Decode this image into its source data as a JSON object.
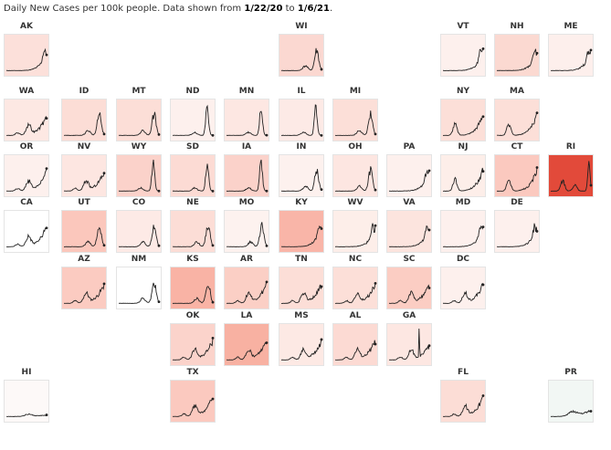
{
  "title": {
    "prefix": "Daily New Cases per 100k people. Data shown from ",
    "start": "1/22/20",
    "mid": " to ",
    "end": "1/6/21",
    "suffix": "."
  },
  "chart_data": {
    "type": "line",
    "description_metric": "Daily New Cases per 100k people",
    "x_range": [
      "1/22/20",
      "1/6/21"
    ],
    "layout": "tile grid map of US states",
    "tiles": [
      {
        "state": "AK",
        "row": 0,
        "col": 0,
        "fill": "#fce0da",
        "shape": "late"
      },
      {
        "state": "WI",
        "row": 0,
        "col": 5,
        "fill": "#fbd8d1",
        "shape": "fall"
      },
      {
        "state": "VT",
        "row": 0,
        "col": 8,
        "fill": "#fdf0ed",
        "shape": "late"
      },
      {
        "state": "NH",
        "row": 0,
        "col": 9,
        "fill": "#fbd9d1",
        "shape": "late"
      },
      {
        "state": "ME",
        "row": 0,
        "col": 10,
        "fill": "#fdefec",
        "shape": "late"
      },
      {
        "state": "WA",
        "row": 1,
        "col": 0,
        "fill": "#fde8e3",
        "shape": "wave3"
      },
      {
        "state": "ID",
        "row": 1,
        "col": 1,
        "fill": "#fcddd6",
        "shape": "fall"
      },
      {
        "state": "MT",
        "row": 1,
        "col": 2,
        "fill": "#fcded7",
        "shape": "fall"
      },
      {
        "state": "ND",
        "row": 1,
        "col": 3,
        "fill": "#fdf0ed",
        "shape": "spike"
      },
      {
        "state": "MN",
        "row": 1,
        "col": 4,
        "fill": "#fde7e2",
        "shape": "spike"
      },
      {
        "state": "IL",
        "row": 1,
        "col": 5,
        "fill": "#fdeae6",
        "shape": "spike"
      },
      {
        "state": "MI",
        "row": 1,
        "col": 6,
        "fill": "#fcdfd8",
        "shape": "fall"
      },
      {
        "state": "NY",
        "row": 1,
        "col": 8,
        "fill": "#fcdfd8",
        "shape": "early"
      },
      {
        "state": "MA",
        "row": 1,
        "col": 9,
        "fill": "#fcdfd8",
        "shape": "early"
      },
      {
        "state": "OR",
        "row": 2,
        "col": 0,
        "fill": "#fdf0ed",
        "shape": "wave3"
      },
      {
        "state": "NV",
        "row": 2,
        "col": 1,
        "fill": "#fde6e1",
        "shape": "wave3"
      },
      {
        "state": "WY",
        "row": 2,
        "col": 2,
        "fill": "#fbd2ca",
        "shape": "spike"
      },
      {
        "state": "SD",
        "row": 2,
        "col": 3,
        "fill": "#fcdbd4",
        "shape": "spike"
      },
      {
        "state": "IA",
        "row": 2,
        "col": 4,
        "fill": "#fbd2ca",
        "shape": "spike"
      },
      {
        "state": "IN",
        "row": 2,
        "col": 5,
        "fill": "#fdf1ee",
        "shape": "fall"
      },
      {
        "state": "OH",
        "row": 2,
        "col": 6,
        "fill": "#fde6e1",
        "shape": "fall"
      },
      {
        "state": "PA",
        "row": 2,
        "col": 7,
        "fill": "#fdf0ed",
        "shape": "late"
      },
      {
        "state": "NJ",
        "row": 2,
        "col": 8,
        "fill": "#fdeee9",
        "shape": "early"
      },
      {
        "state": "CT",
        "row": 2,
        "col": 9,
        "fill": "#fbc9bf",
        "shape": "early"
      },
      {
        "state": "RI",
        "row": 2,
        "col": 10,
        "fill": "#e24a3a",
        "shape": "ri"
      },
      {
        "state": "CA",
        "row": 3,
        "col": 0,
        "fill": "#ffffff",
        "shape": "wave3"
      },
      {
        "state": "UT",
        "row": 3,
        "col": 1,
        "fill": "#fbc7bc",
        "shape": "fall"
      },
      {
        "state": "CO",
        "row": 3,
        "col": 2,
        "fill": "#fdeae6",
        "shape": "fall"
      },
      {
        "state": "NE",
        "row": 3,
        "col": 3,
        "fill": "#fcddd6",
        "shape": "fall"
      },
      {
        "state": "MO",
        "row": 3,
        "col": 4,
        "fill": "#fdf2ef",
        "shape": "fall"
      },
      {
        "state": "KY",
        "row": 3,
        "col": 5,
        "fill": "#f9b5a8",
        "shape": "late"
      },
      {
        "state": "WV",
        "row": 3,
        "col": 6,
        "fill": "#fdeee9",
        "shape": "late"
      },
      {
        "state": "VA",
        "row": 3,
        "col": 7,
        "fill": "#fce4de",
        "shape": "late"
      },
      {
        "state": "MD",
        "row": 3,
        "col": 8,
        "fill": "#fdf0ed",
        "shape": "late"
      },
      {
        "state": "DE",
        "row": 3,
        "col": 9,
        "fill": "#fdf0ed",
        "shape": "late"
      },
      {
        "state": "AZ",
        "row": 4,
        "col": 1,
        "fill": "#fbcbc1",
        "shape": "wave3"
      },
      {
        "state": "NM",
        "row": 4,
        "col": 2,
        "fill": "#ffffff",
        "shape": "fall"
      },
      {
        "state": "KS",
        "row": 4,
        "col": 3,
        "fill": "#f9b3a5",
        "shape": "fall"
      },
      {
        "state": "AR",
        "row": 4,
        "col": 4,
        "fill": "#fbcfc5",
        "shape": "wave3"
      },
      {
        "state": "TN",
        "row": 4,
        "col": 5,
        "fill": "#fcded7",
        "shape": "wave3"
      },
      {
        "state": "NC",
        "row": 4,
        "col": 6,
        "fill": "#fcdfd8",
        "shape": "wave3"
      },
      {
        "state": "SC",
        "row": 4,
        "col": 7,
        "fill": "#fbcdc3",
        "shape": "wave3"
      },
      {
        "state": "DC",
        "row": 4,
        "col": 8,
        "fill": "#fdf0ed",
        "shape": "wave3"
      },
      {
        "state": "OK",
        "row": 5,
        "col": 3,
        "fill": "#fbd3cb",
        "shape": "wave3"
      },
      {
        "state": "LA",
        "row": 5,
        "col": 4,
        "fill": "#f8b1a2",
        "shape": "wave3"
      },
      {
        "state": "MS",
        "row": 5,
        "col": 5,
        "fill": "#fde9e4",
        "shape": "wave3"
      },
      {
        "state": "AL",
        "row": 5,
        "col": 6,
        "fill": "#fcdad3",
        "shape": "wave3"
      },
      {
        "state": "GA",
        "row": 5,
        "col": 7,
        "fill": "#fde7e2",
        "shape": "ga"
      },
      {
        "state": "HI",
        "row": 6,
        "col": 0,
        "fill": "#fdf9f8",
        "shape": "flat"
      },
      {
        "state": "TX",
        "row": 6,
        "col": 3,
        "fill": "#fbc9bf",
        "shape": "wave3"
      },
      {
        "state": "FL",
        "row": 6,
        "col": 8,
        "fill": "#fcddd6",
        "shape": "wave3"
      },
      {
        "state": "PR",
        "row": 6,
        "col": 10,
        "fill": "#f2f7f4",
        "shape": "pr"
      }
    ]
  }
}
